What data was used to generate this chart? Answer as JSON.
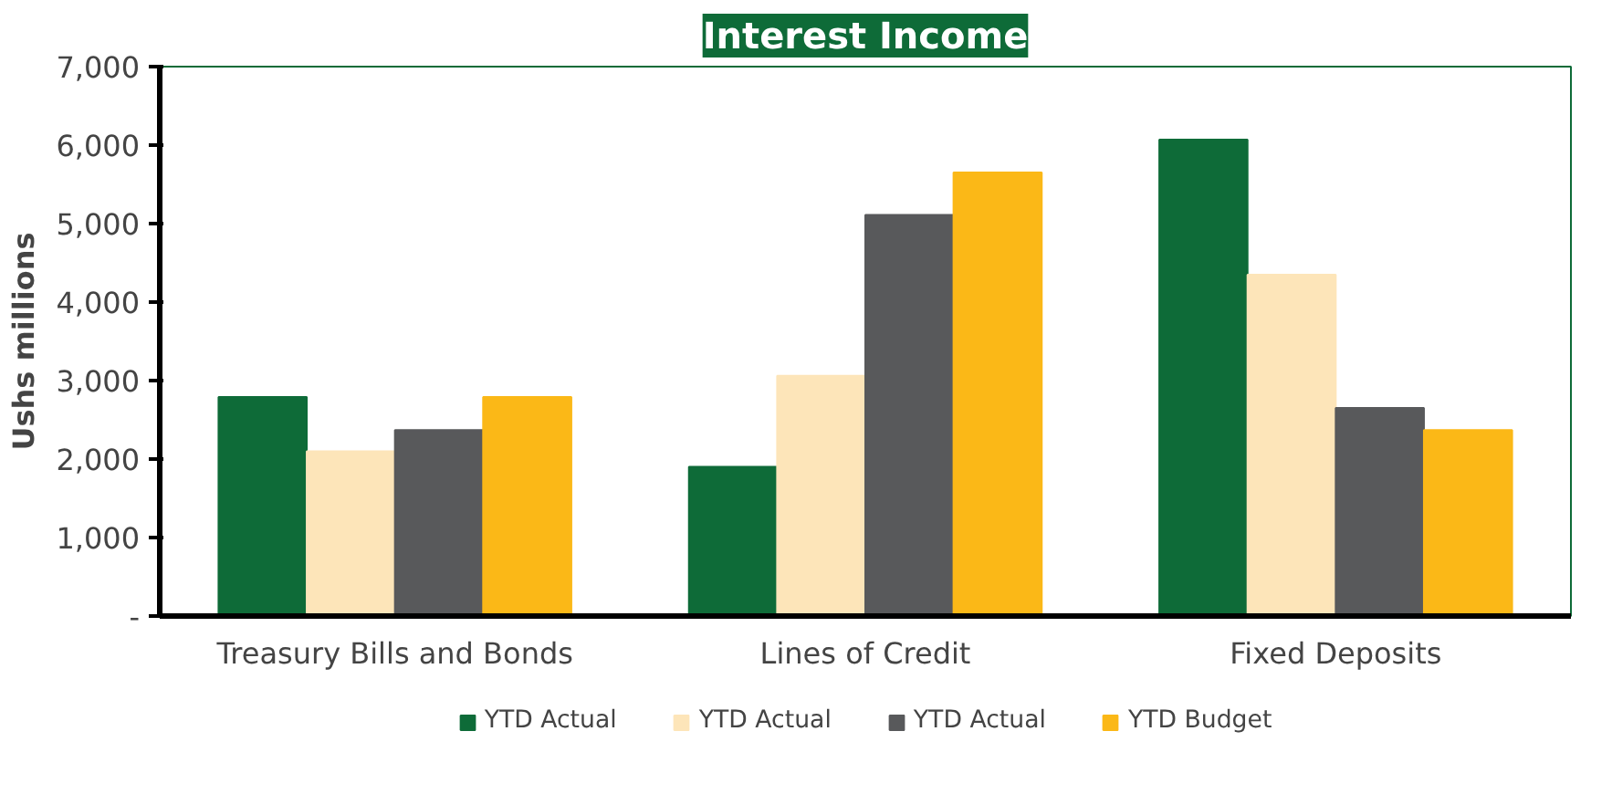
{
  "chart_data": {
    "type": "bar",
    "title": "Interest Income",
    "ylabel": "Ushs millions",
    "categories": [
      "Treasury Bills and Bonds",
      "Lines of Credit",
      "Fixed Deposits"
    ],
    "series": [
      {
        "name": "YTD Actual",
        "color": "#0e6b38",
        "values": [
          2790,
          1900,
          6070
        ]
      },
      {
        "name": "YTD Actual",
        "color": "#fde5b9",
        "values": [
          2100,
          3060,
          4350
        ]
      },
      {
        "name": "YTD Actual",
        "color": "#58595b",
        "values": [
          2370,
          5110,
          2650
        ]
      },
      {
        "name": "YTD Budget",
        "color": "#fbb817",
        "values": [
          2790,
          5650,
          2370
        ]
      }
    ],
    "ylim": [
      0,
      7000
    ],
    "yticks": [
      {
        "value": 0,
        "label": "-"
      },
      {
        "value": 1000,
        "label": "1,000"
      },
      {
        "value": 2000,
        "label": "2,000"
      },
      {
        "value": 3000,
        "label": "3,000"
      },
      {
        "value": 4000,
        "label": "4,000"
      },
      {
        "value": 5000,
        "label": "5,000"
      },
      {
        "value": 6000,
        "label": "6,000"
      },
      {
        "value": 7000,
        "label": "7,000"
      }
    ],
    "grid": false,
    "legend": "bottom"
  }
}
